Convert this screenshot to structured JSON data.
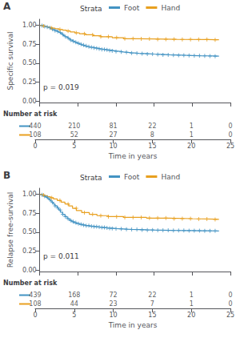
{
  "chart_data": [
    {
      "type": "step",
      "title": "A",
      "ylabel": "Specific survival",
      "xlabel": "Time in years",
      "annotations": [
        "p = 0.019"
      ],
      "legend": "top",
      "legend_title": "Strata",
      "risk_table_title": "Number at risk",
      "grid": false,
      "xlim": [
        0,
        25
      ],
      "xticks": [
        0,
        5,
        10,
        15,
        20,
        25
      ],
      "ylim": [
        -0.02,
        1.08
      ],
      "yticks": [
        {
          "value": 0,
          "label": "0.00"
        },
        0.25,
        {
          "value": 0.5,
          "label": "0.50"
        },
        0.75,
        {
          "value": 1,
          "label": "1.00"
        }
      ],
      "series": [
        {
          "name": "Foot",
          "color": "#4393C3",
          "x": [
            0,
            0.2,
            0.4,
            0.6,
            0.8,
            1.0,
            1.2,
            1.4,
            1.6,
            1.8,
            2.0,
            2.3,
            2.5,
            2.7,
            2.9,
            3.1,
            3.3,
            3.6,
            3.8,
            4.0,
            4.3,
            4.6,
            4.9,
            5.2,
            5.5,
            5.8,
            6.1,
            6.5,
            6.9,
            7.3,
            7.7,
            8.1,
            8.5,
            9.0,
            9.5,
            10.0,
            10.5,
            11.0,
            11.5,
            12.0,
            12.5,
            13.0,
            14.0,
            15.0,
            16.0,
            17.0,
            18.0,
            19.0,
            20.0,
            21.0,
            22.0,
            23.0,
            23.5
          ],
          "values": [
            1.0,
            0.995,
            0.99,
            0.984,
            0.978,
            0.972,
            0.965,
            0.957,
            0.949,
            0.94,
            0.93,
            0.918,
            0.906,
            0.893,
            0.879,
            0.865,
            0.85,
            0.835,
            0.82,
            0.805,
            0.79,
            0.775,
            0.762,
            0.75,
            0.738,
            0.727,
            0.718,
            0.71,
            0.703,
            0.696,
            0.689,
            0.682,
            0.675,
            0.668,
            0.661,
            0.655,
            0.648,
            0.643,
            0.638,
            0.634,
            0.63,
            0.626,
            0.62,
            0.615,
            0.61,
            0.607,
            0.604,
            0.601,
            0.598,
            0.596,
            0.594,
            0.592,
            0.59
          ],
          "censor": {
            "marker": "+",
            "x": [
              0.3,
              0.6407,
              0.9815,
              1.3222,
              1.663,
              2.0037,
              2.3444,
              2.6852,
              3.0259,
              3.3667,
              3.7074,
              4.0481,
              4.3889,
              4.7296,
              5.0704,
              5.4111,
              5.7519,
              6.0926,
              6.4333,
              6.7741,
              7.1148,
              7.4556,
              7.7963,
              8.137,
              8.4778,
              8.8185,
              9.1593,
              9.5,
              10,
              10.6842,
              11.3684,
              12.0526,
              12.7368,
              13.4211,
              14.1053,
              14.7895,
              15.4737,
              16.1579,
              16.8421,
              17.5263,
              18.2105,
              18.8947,
              19.5789,
              20.2632,
              20.9474,
              21.6316,
              22.3158,
              23
            ],
            "values": [
              0.995,
              0.984,
              0.978,
              0.965,
              0.949,
              0.93,
              0.918,
              0.906,
              0.879,
              0.85,
              0.835,
              0.805,
              0.79,
              0.775,
              0.762,
              0.75,
              0.738,
              0.727,
              0.718,
              0.71,
              0.703,
              0.696,
              0.689,
              0.682,
              0.682,
              0.675,
              0.668,
              0.661,
              0.655,
              0.648,
              0.643,
              0.634,
              0.63,
              0.626,
              0.62,
              0.62,
              0.615,
              0.61,
              0.61,
              0.607,
              0.604,
              0.604,
              0.601,
              0.598,
              0.598,
              0.596,
              0.594,
              0.592
            ]
          },
          "at_risk": [
            440,
            210,
            81,
            22,
            1,
            0
          ]
        },
        {
          "name": "Hand",
          "color": "#E8A020",
          "x": [
            0,
            0.3,
            0.7,
            1.1,
            1.5,
            2.0,
            2.5,
            3.0,
            3.5,
            4.0,
            4.6,
            5.2,
            6.0,
            7.0,
            8.0,
            9.5,
            11.0,
            13.0,
            15.0,
            18.0,
            22.0,
            23.5
          ],
          "values": [
            1.0,
            0.991,
            0.982,
            0.972,
            0.963,
            0.954,
            0.944,
            0.935,
            0.925,
            0.912,
            0.9,
            0.888,
            0.875,
            0.862,
            0.849,
            0.836,
            0.823,
            0.82,
            0.815,
            0.812,
            0.808,
            0.808
          ],
          "censor": {
            "marker": "+",
            "x": [
              0.5,
              1.5714,
              2.6429,
              3.7143,
              4.7857,
              5.8571,
              6.9286,
              8,
              9,
              10.0769,
              11.1538,
              12.2308,
              13.3077,
              14.3846,
              15.4615,
              16.5385,
              17.6154,
              18.6923,
              19.7692,
              20.8462,
              21.9231,
              23
            ],
            "values": [
              0.991,
              0.963,
              0.944,
              0.925,
              0.9,
              0.888,
              0.875,
              0.849,
              0.849,
              0.836,
              0.823,
              0.823,
              0.82,
              0.82,
              0.815,
              0.815,
              0.815,
              0.812,
              0.812,
              0.812,
              0.812,
              0.808
            ]
          },
          "at_risk": [
            108,
            52,
            27,
            8,
            1,
            0
          ]
        }
      ]
    },
    {
      "type": "step",
      "title": "B",
      "ylabel": "Relapse free-survival",
      "xlabel": "Time in years",
      "annotations": [
        "p = 0.011"
      ],
      "legend": "top",
      "legend_title": "Strata",
      "risk_table_title": "Number at risk",
      "grid": false,
      "xlim": [
        0,
        25
      ],
      "xticks": [
        0,
        5,
        10,
        15,
        20,
        25
      ],
      "ylim": [
        -0.02,
        1.08
      ],
      "yticks": [
        {
          "value": 0,
          "label": "0.00"
        },
        0.25,
        {
          "value": 0.5,
          "label": "0.50"
        },
        0.75,
        {
          "value": 1,
          "label": "1.00"
        }
      ],
      "series": [
        {
          "name": "Foot",
          "color": "#4393C3",
          "x": [
            0,
            0.2,
            0.4,
            0.6,
            0.8,
            1.0,
            1.2,
            1.4,
            1.6,
            1.8,
            2.0,
            2.3,
            2.5,
            2.7,
            3.0,
            3.3,
            3.6,
            3.9,
            4.2,
            4.5,
            4.8,
            5.2,
            5.6,
            6.0,
            6.5,
            7.0,
            7.5,
            8.0,
            8.5,
            9.0,
            9.5,
            10.0,
            10.5,
            11.0,
            11.5,
            12.0,
            13.0,
            14.0,
            15.0,
            16.0,
            17.0,
            18.0,
            19.0,
            20.0,
            21.0,
            22.0,
            23.0,
            23.5
          ],
          "values": [
            1.0,
            0.993,
            0.984,
            0.973,
            0.96,
            0.946,
            0.93,
            0.912,
            0.892,
            0.87,
            0.847,
            0.82,
            0.793,
            0.765,
            0.735,
            0.705,
            0.678,
            0.655,
            0.638,
            0.624,
            0.613,
            0.603,
            0.594,
            0.586,
            0.578,
            0.572,
            0.566,
            0.561,
            0.556,
            0.552,
            0.548,
            0.545,
            0.542,
            0.539,
            0.537,
            0.535,
            0.531,
            0.528,
            0.526,
            0.524,
            0.522,
            0.521,
            0.52,
            0.519,
            0.518,
            0.517,
            0.516,
            0.516
          ],
          "censor": {
            "marker": "+",
            "x": [
              0.3,
              0.6407,
              0.9815,
              1.3222,
              1.663,
              2.0037,
              2.3444,
              2.6852,
              3.0259,
              3.3667,
              3.7074,
              4.0481,
              4.3889,
              4.7296,
              5.0704,
              5.4111,
              5.7519,
              6.0926,
              6.4333,
              6.7741,
              7.1148,
              7.4556,
              7.7963,
              8.137,
              8.4778,
              8.8185,
              9.1593,
              9.5,
              10,
              10.6842,
              11.3684,
              12.0526,
              12.7368,
              13.4211,
              14.1053,
              14.7895,
              15.4737,
              16.1579,
              16.8421,
              17.5263,
              18.2105,
              18.8947,
              19.5789,
              20.2632,
              20.9474,
              21.6316,
              22.3158,
              23
            ],
            "values": [
              0.993,
              0.973,
              0.96,
              0.93,
              0.892,
              0.847,
              0.82,
              0.793,
              0.735,
              0.705,
              0.678,
              0.655,
              0.638,
              0.624,
              0.613,
              0.603,
              0.594,
              0.586,
              0.586,
              0.578,
              0.572,
              0.572,
              0.566,
              0.561,
              0.561,
              0.556,
              0.552,
              0.548,
              0.545,
              0.542,
              0.539,
              0.535,
              0.535,
              0.531,
              0.528,
              0.528,
              0.526,
              0.524,
              0.524,
              0.522,
              0.521,
              0.521,
              0.52,
              0.519,
              0.519,
              0.518,
              0.517,
              0.516
            ]
          },
          "at_risk": [
            439,
            168,
            72,
            22,
            1,
            0
          ]
        },
        {
          "name": "Hand",
          "color": "#E8A020",
          "x": [
            0,
            0.3,
            0.6,
            1.0,
            1.4,
            1.8,
            2.3,
            2.8,
            3.3,
            3.8,
            4.3,
            4.8,
            5.5,
            6.5,
            7.5,
            9.0,
            11.0,
            14.0,
            17.0,
            20.0,
            23.0,
            23.5
          ],
          "values": [
            1.0,
            0.991,
            0.981,
            0.968,
            0.954,
            0.938,
            0.918,
            0.897,
            0.872,
            0.845,
            0.815,
            0.785,
            0.758,
            0.735,
            0.718,
            0.705,
            0.695,
            0.685,
            0.678,
            0.672,
            0.668,
            0.668
          ],
          "censor": {
            "marker": "+",
            "x": [
              0.5,
              1.5714,
              2.6429,
              3.7143,
              4.7857,
              5.8571,
              6.9286,
              8,
              9,
              10.0769,
              11.1538,
              12.2308,
              13.3077,
              14.3846,
              15.4615,
              16.5385,
              17.6154,
              18.6923,
              19.7692,
              20.8462,
              21.9231,
              23
            ],
            "values": [
              0.991,
              0.954,
              0.918,
              0.872,
              0.815,
              0.758,
              0.735,
              0.718,
              0.705,
              0.705,
              0.695,
              0.695,
              0.695,
              0.685,
              0.685,
              0.685,
              0.678,
              0.678,
              0.678,
              0.672,
              0.672,
              0.668
            ]
          },
          "at_risk": [
            108,
            44,
            23,
            7,
            1,
            0
          ]
        }
      ]
    }
  ]
}
